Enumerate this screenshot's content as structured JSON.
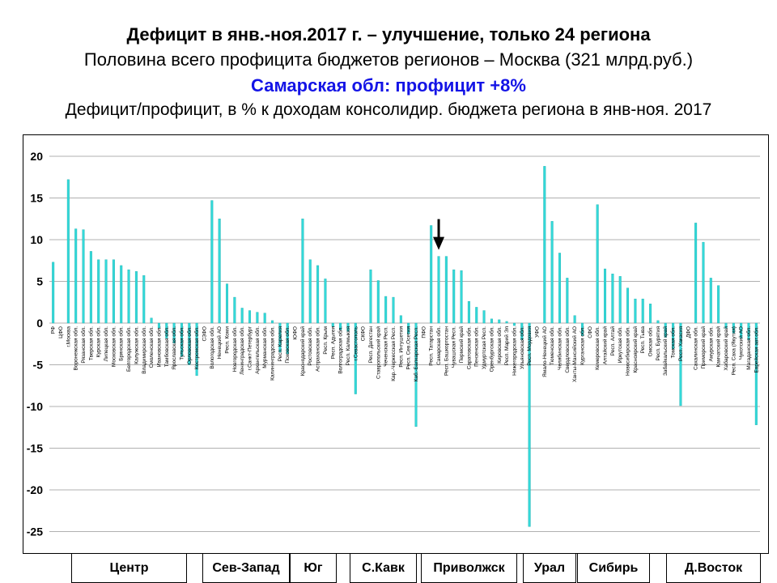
{
  "titles": {
    "line1": "Дефицит в янв.-ноя.2017 г. – улучшение, только 24 региона",
    "line2": "Половина всего профицита бюджетов регионов – Москва (321 млрд.руб.)",
    "line3": "Самарская обл: профицит +8%",
    "line4": "Дефицит/профицит, в % к доходам консолидир. бюджета региона в янв-ноя. 2017"
  },
  "district_labels": [
    "Центр",
    "Сев-Запад",
    "Юг",
    "С.Кавк",
    "Приволжск",
    "Урал",
    "Сибирь",
    "Д.Восток"
  ],
  "colors": {
    "bar": "#33d9d9",
    "bar_stroke": "#1fb0b0",
    "grid": "#b0b0b0",
    "arrow": "#000000"
  },
  "chart_data": {
    "type": "bar",
    "title": "",
    "xlabel": "",
    "ylabel": "",
    "ylim": [
      -25,
      20
    ],
    "y_ticks": [
      20,
      15,
      10,
      5,
      0,
      -5,
      -10,
      -15,
      -20,
      -25
    ],
    "grid": true,
    "annotation": "arrow pointing to Самарская обл.",
    "categories": [
      "РФ",
      "ЦФО",
      "г.Москва",
      "Воронежская обл.",
      "Рязанская обл.",
      "Тверская обл.",
      "Курская обл.",
      "Липецкая обл.",
      "Московская обл.",
      "Брянская обл.",
      "Белгородская обл.",
      "Калужская обл.",
      "Владимирская обл.",
      "Смоленская обл.",
      "Ивановская обл.",
      "Тамбовская обл.",
      "Ярославская обл.",
      "Тульская обл.",
      "Орловская обл.",
      "Костромская обл.",
      "СЗФО",
      "Вологодская обл.",
      "Ненецкий АО",
      "Респ. Коми",
      "Новгородская обл.",
      "Ленинградская обл.",
      "г.Санкт-Петербург",
      "Архангельская обл.",
      "Мурманская обл.",
      "Калининградская обл.",
      "Респ. Карелия",
      "Псковская обл.",
      "ЮФО",
      "Краснодарский край",
      "Ростовская обл.",
      "Астраханская обл.",
      "Респ. Крым",
      "Респ. Адыгея",
      "Волгоградская обл.",
      "Респ. Калмыкия",
      "г.Севастополь",
      "СКФО",
      "Респ. Дагестан",
      "Ставропольский край",
      "Чеченская Респ.",
      "Кар.-Черкесская Респ.",
      "Респ. Ингушетия",
      "Респ. Сев.Осетия",
      "Каб.-Балкарская Респ.",
      "ПФО",
      "Респ. Татарстан",
      "Самарская обл.",
      "Респ. Башкортостан",
      "Чувашская Респ.",
      "Пермский край",
      "Саратовская обл.",
      "Пензенская обл.",
      "Удмуртская Респ.",
      "Оренбургская обл.",
      "Кировская обл.",
      "Респ. Марий Эл",
      "Нижегородская обл.",
      "Ульяновская обл.",
      "Респ. Мордовия",
      "УФО",
      "Ямало-Ненецкий АО",
      "Тюменская обл.",
      "Челябинская обл.",
      "Свердловская обл.",
      "Ханты-Мансийский АО",
      "Курганская обл.",
      "СФО",
      "Кемеровская обл.",
      "Алтайский край",
      "Респ. Алтай",
      "Иркутская обл.",
      "Новосибирская обл.",
      "Красноярский край",
      "Респ. Тыва",
      "Омская обл.",
      "Респ. Бурятия",
      "Забайкальский край",
      "Томская обл.",
      "Респ. Хакасия",
      "ДФО",
      "Сахалинская обл.",
      "Приморский край",
      "Амурская обл.",
      "Камчатский край",
      "Хабаровский край",
      "Респ. Саха (Якутия)",
      "Чукотский АО",
      "Магаданская обл.",
      "Еврейская авт.обл."
    ],
    "values": [
      7.3,
      0,
      17.2,
      11.3,
      11.2,
      8.6,
      7.6,
      7.6,
      7.6,
      6.9,
      6.4,
      6.2,
      5.7,
      0.6,
      -0.6,
      -1.8,
      -2.4,
      -4.0,
      -5.0,
      -6.3,
      0,
      14.7,
      12.5,
      4.7,
      3.1,
      1.8,
      1.5,
      1.3,
      1.2,
      0.3,
      -3.5,
      -3.7,
      0,
      12.5,
      7.6,
      6.9,
      5.3,
      -0.4,
      -0.8,
      -1.0,
      -8.5,
      0,
      6.4,
      5.1,
      3.2,
      3.1,
      0.9,
      -1.3,
      -12.4,
      0,
      11.7,
      8.0,
      8.0,
      6.4,
      6.3,
      2.6,
      1.9,
      1.5,
      0.5,
      0.4,
      0.2,
      -0.3,
      -2.0,
      -24.4,
      0,
      18.8,
      12.2,
      8.4,
      5.4,
      0.9,
      -1.5,
      0,
      14.2,
      6.5,
      5.9,
      5.6,
      4.2,
      2.9,
      2.9,
      2.3,
      0.3,
      -1.7,
      -3.1,
      -9.9,
      0,
      12.0,
      9.7,
      5.4,
      4.5,
      -0.6,
      -1.2,
      -1.8,
      -2.0,
      -12.2
    ]
  }
}
